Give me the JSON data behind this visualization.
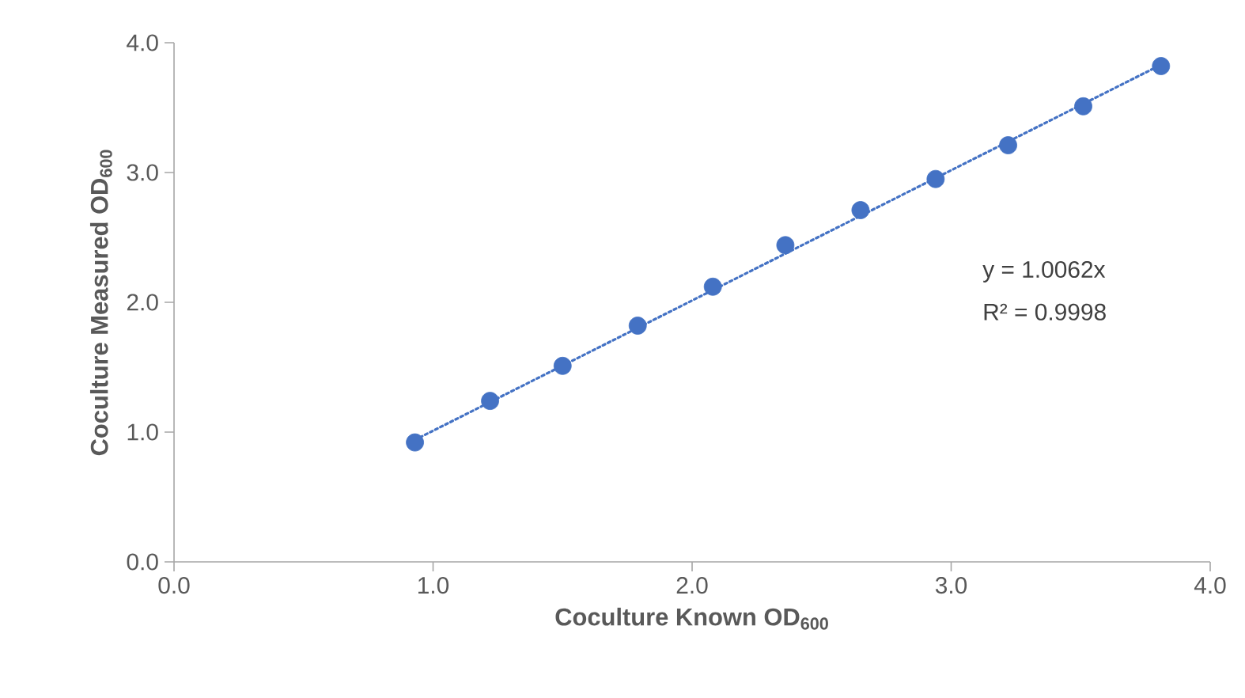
{
  "chart_data": {
    "type": "scatter",
    "xlabel": "Coculture Known OD$_{600}$",
    "ylabel": "Coculture Measured OD$_{600}$",
    "xlim": [
      0,
      4
    ],
    "ylim": [
      0,
      4
    ],
    "xticks": [
      {
        "value": 0,
        "label": "0.0"
      },
      {
        "value": 1,
        "label": "1.0"
      },
      {
        "value": 2,
        "label": "2.0"
      },
      {
        "value": 3,
        "label": "3.0"
      },
      {
        "value": 4,
        "label": "4.0"
      }
    ],
    "yticks": [
      {
        "value": 0,
        "label": "0.0"
      },
      {
        "value": 1,
        "label": "1.0"
      },
      {
        "value": 2,
        "label": "2.0"
      },
      {
        "value": 3,
        "label": "3.0"
      },
      {
        "value": 4,
        "label": "4.0"
      }
    ],
    "series": [
      {
        "color": "#4472c4",
        "marker": "circle",
        "x": [
          0.93,
          1.22,
          1.5,
          1.79,
          2.08,
          2.36,
          2.65,
          2.94,
          3.22,
          3.51,
          3.81
        ],
        "values": [
          0.92,
          1.24,
          1.51,
          1.82,
          2.12,
          2.44,
          2.71,
          2.95,
          3.21,
          3.51,
          3.82
        ]
      },
      {
        "type": "line",
        "color": "#4472c4",
        "marker": "none",
        "line_style": "dotted",
        "x": [
          0.93,
          3.81
        ],
        "values": [
          0.94,
          3.83
        ]
      }
    ],
    "annotations": [
      "y = 1.0062x",
      "R² = 0.9998"
    ],
    "grid": false
  }
}
